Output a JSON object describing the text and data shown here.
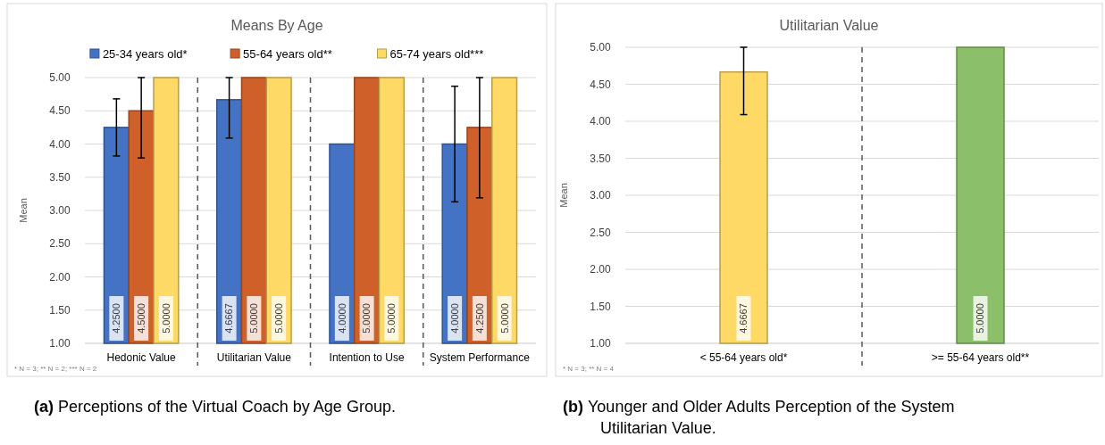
{
  "chart_data": [
    {
      "type": "bar",
      "title": "Means By Age",
      "ylabel": "Mean",
      "categories": [
        "Hedonic Value",
        "Utilitarian Value",
        "Intention to Use",
        "System Performance"
      ],
      "series": [
        {
          "name": "25-34 years old*",
          "color": "#4472c4",
          "values": [
            4.25,
            4.6667,
            4.0,
            4.0
          ],
          "value_labels": [
            "4.2500",
            "4.6667",
            "4.0000",
            "4.0000"
          ],
          "errors": [
            [
              3.82,
              4.68
            ],
            [
              4.09,
              5.0
            ],
            null,
            [
              3.13,
              4.87
            ]
          ]
        },
        {
          "name": "55-64 years old**",
          "color": "#d0602a",
          "values": [
            4.5,
            5.0,
            5.0,
            4.25
          ],
          "value_labels": [
            "4.5000",
            "5.0000",
            "5.0000",
            "4.2500"
          ],
          "errors": [
            [
              3.79,
              5.0
            ],
            null,
            null,
            [
              3.19,
              5.0
            ]
          ]
        },
        {
          "name": "65-74 years old***",
          "color": "#ffd966",
          "values": [
            5.0,
            5.0,
            5.0,
            5.0
          ],
          "value_labels": [
            "5.0000",
            "5.0000",
            "5.0000",
            "5.0000"
          ],
          "errors": [
            null,
            null,
            null,
            null
          ]
        }
      ],
      "ylim": [
        1,
        5
      ],
      "yticks": [
        {
          "value": 1,
          "label": "1.00"
        },
        {
          "value": 1.5,
          "label": "1.50"
        },
        {
          "value": 2,
          "label": "2.00"
        },
        {
          "value": 2.5,
          "label": "2.50"
        },
        {
          "value": 3,
          "label": "3.00"
        },
        {
          "value": 3.5,
          "label": "3.50"
        },
        {
          "value": 4,
          "label": "4.00"
        },
        {
          "value": 4.5,
          "label": "4.50"
        },
        {
          "value": 5,
          "label": "5.00"
        }
      ],
      "grid": "y",
      "legend": "top",
      "annotations": [
        "* N = 3; ** N  = 2; *** N = 2",
        "(a) Perceptions of the Virtual Coach by Age Group."
      ]
    },
    {
      "type": "bar",
      "title": "Utilitarian Value",
      "ylabel": "Mean",
      "categories": [
        "< 55-64 years old*",
        ">= 55-64 years old**"
      ],
      "series": [
        {
          "colors": [
            "#ffd966",
            "#8cbf6a"
          ],
          "values": [
            4.6667,
            5.0
          ],
          "value_labels": [
            "4.6667",
            "5.0000"
          ],
          "errors": [
            [
              4.09,
              5.0
            ],
            null
          ]
        }
      ],
      "ylim": [
        1,
        5
      ],
      "yticks": [
        {
          "value": 1,
          "label": "1.00"
        },
        {
          "value": 1.5,
          "label": "1.50"
        },
        {
          "value": 2,
          "label": "2.00"
        },
        {
          "value": 2.5,
          "label": "2.50"
        },
        {
          "value": 3,
          "label": "3.00"
        },
        {
          "value": 3.5,
          "label": "3.50"
        },
        {
          "value": 4,
          "label": "4.00"
        },
        {
          "value": 4.5,
          "label": "4.50"
        },
        {
          "value": 5,
          "label": "5.00"
        }
      ],
      "grid": "y",
      "annotations": [
        "* N = 3; ** N  = 4",
        "(b) Younger and Older Adults Perception of the System Utilitarian Value."
      ]
    }
  ]
}
